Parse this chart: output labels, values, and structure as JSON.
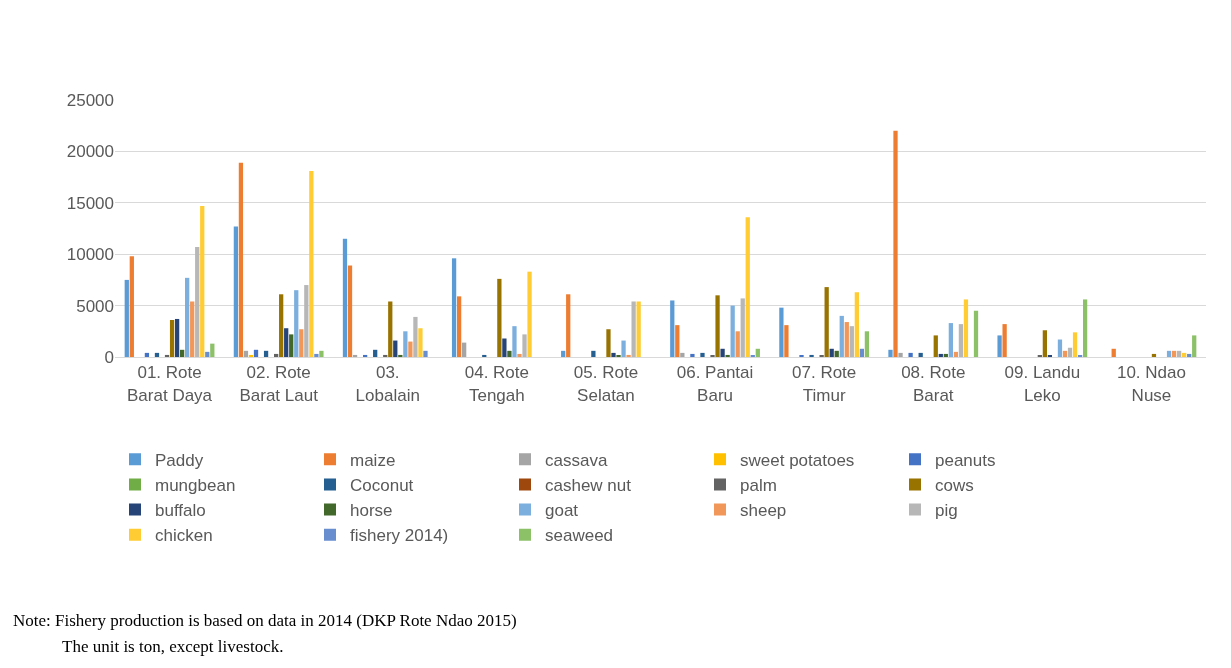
{
  "chart_data": {
    "type": "bar",
    "categories": [
      "01. Rote Barat Daya",
      "02. Rote Barat Laut",
      "03. Lobalain",
      "04. Rote Tengah",
      "05. Rote Selatan",
      "06. Pantai Baru",
      "07. Rote Timur",
      "08. Rote Barat",
      "09. Landu Leko",
      "10. Ndao Nuse"
    ],
    "series": [
      {
        "name": "Paddy",
        "color": "#5b9bd5",
        "values": [
          7500,
          12700,
          11500,
          9600,
          600,
          5500,
          4800,
          700,
          2100,
          0
        ]
      },
      {
        "name": "maize",
        "color": "#ed7d31",
        "values": [
          9800,
          18900,
          8900,
          5900,
          6100,
          3100,
          3100,
          22000,
          3200,
          800
        ]
      },
      {
        "name": "cassava",
        "color": "#a5a5a5",
        "values": [
          0,
          600,
          200,
          1400,
          0,
          400,
          0,
          400,
          0,
          0
        ]
      },
      {
        "name": "sweet potatoes",
        "color": "#ffc000",
        "values": [
          0,
          200,
          0,
          0,
          0,
          0,
          0,
          0,
          0,
          0
        ]
      },
      {
        "name": "peanuts",
        "color": "#4472c4",
        "values": [
          400,
          700,
          200,
          0,
          0,
          300,
          100,
          400,
          0,
          0
        ]
      },
      {
        "name": "mungbean",
        "color": "#70ad47",
        "values": [
          0,
          0,
          0,
          0,
          0,
          0,
          0,
          0,
          0,
          0
        ]
      },
      {
        "name": "Coconut",
        "color": "#255e91",
        "values": [
          400,
          600,
          700,
          200,
          600,
          400,
          200,
          400,
          0,
          0
        ]
      },
      {
        "name": "cashew nut",
        "color": "#9e480e",
        "values": [
          0,
          0,
          0,
          0,
          0,
          0,
          0,
          0,
          0,
          0
        ]
      },
      {
        "name": "palm",
        "color": "#636363",
        "values": [
          200,
          300,
          200,
          0,
          0,
          100,
          100,
          0,
          100,
          0
        ]
      },
      {
        "name": "cows",
        "color": "#997300",
        "values": [
          3600,
          6100,
          5400,
          7600,
          2700,
          6000,
          6800,
          2100,
          2600,
          300
        ]
      },
      {
        "name": "buffalo",
        "color": "#264478",
        "values": [
          3700,
          2800,
          1600,
          1800,
          400,
          800,
          800,
          300,
          100,
          0
        ]
      },
      {
        "name": "horse",
        "color": "#43682b",
        "values": [
          700,
          2200,
          200,
          600,
          100,
          200,
          600,
          300,
          0,
          0
        ]
      },
      {
        "name": "goat",
        "color": "#7cafdd",
        "values": [
          7700,
          6500,
          2500,
          3000,
          1600,
          5000,
          4000,
          3300,
          1700,
          600
        ]
      },
      {
        "name": "sheep",
        "color": "#f1975a",
        "values": [
          5400,
          2700,
          1500,
          300,
          200,
          2500,
          3400,
          500,
          600,
          600
        ]
      },
      {
        "name": "pig",
        "color": "#b7b7b7",
        "values": [
          10700,
          7000,
          3900,
          2200,
          5400,
          5700,
          3000,
          3200,
          900,
          600
        ]
      },
      {
        "name": "chicken",
        "color": "#ffcd33",
        "values": [
          14700,
          18100,
          2800,
          8300,
          5400,
          13600,
          6300,
          5600,
          2400,
          400
        ]
      },
      {
        "name": "fishery 2014)",
        "color": "#698ed0",
        "values": [
          500,
          300,
          600,
          0,
          0,
          100,
          800,
          0,
          100,
          300
        ]
      },
      {
        "name": "seaweed",
        "color": "#8cc168",
        "values": [
          1300,
          600,
          0,
          0,
          0,
          800,
          2500,
          4500,
          5600,
          2100
        ]
      }
    ],
    "ylim": [
      0,
      25000
    ],
    "yticks": [
      0,
      5000,
      10000,
      15000,
      20000,
      25000
    ],
    "grid": "y",
    "legend": "bottom",
    "annotations": [
      "Note: Fishery production is based on data in 2014 (DKP Rote Ndao 2015)",
      "The unit is ton, except livestock."
    ]
  }
}
